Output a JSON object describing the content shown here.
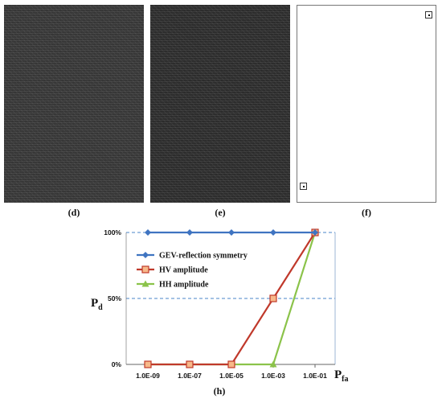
{
  "panels": [
    {
      "label": "(d)"
    },
    {
      "label": "(e)"
    },
    {
      "label": "(f)"
    }
  ],
  "chart_data": {
    "type": "line",
    "categories": [
      "1.0E-09",
      "1.0E-07",
      "1.0E-05",
      "1.0E-03",
      "1.0E-01"
    ],
    "y_ticks": [
      "0%",
      "50%",
      "100%"
    ],
    "ylim": [
      0,
      100
    ],
    "ylabel": "P",
    "ylabel_sub": "d",
    "xlabel": "P",
    "xlabel_sub": "fa",
    "caption": "(h)",
    "legend_position": "upper-left",
    "grid": "dashed horizontal at 50% and 100%",
    "series": [
      {
        "name": "GEV-reflection symmetry",
        "color": "#3f74c1",
        "marker": "diamond",
        "points": [
          [
            0,
            100
          ],
          [
            1,
            100
          ],
          [
            2,
            100
          ],
          [
            3,
            100
          ],
          [
            4,
            100
          ]
        ]
      },
      {
        "name": "HV amplitude",
        "color": "#c0392b",
        "marker": "square",
        "points": [
          [
            0,
            0
          ],
          [
            1,
            0
          ],
          [
            2,
            0
          ],
          [
            3,
            50
          ],
          [
            4,
            100
          ]
        ]
      },
      {
        "name": "HH amplitude",
        "color": "#8bc34a",
        "marker": "triangle",
        "points": [
          [
            0,
            0
          ],
          [
            1,
            0
          ],
          [
            2,
            0
          ],
          [
            3,
            0
          ],
          [
            4,
            100
          ]
        ]
      }
    ]
  }
}
